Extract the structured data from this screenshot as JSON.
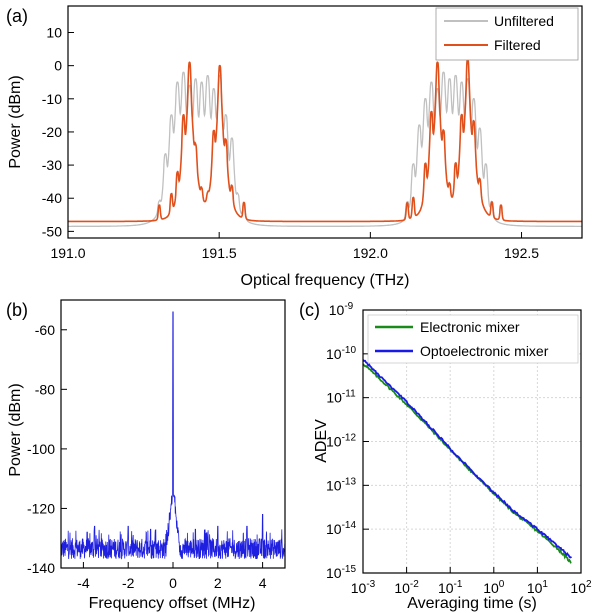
{
  "chart_data": [
    {
      "panel": "(a)",
      "type": "line",
      "xlabel": "Optical frequency (THz)",
      "ylabel": "Power (dBm)",
      "xlim": [
        191.0,
        192.7
      ],
      "ylim": [
        -52,
        18
      ],
      "xticks": [
        191.0,
        191.5,
        192.0,
        192.5
      ],
      "xtick_labels": [
        "191.0",
        "191.5",
        "192.0",
        "192.5"
      ],
      "yticks": [
        -50,
        -40,
        -30,
        -20,
        -10,
        0,
        10
      ],
      "ytick_labels": [
        "-50",
        "-40",
        "-30",
        "-20",
        "-10",
        "0",
        "10"
      ],
      "legend_position": "top-right",
      "series": [
        {
          "name": "Unfiltered",
          "color": "#c0c0c0",
          "floor": -48.5,
          "peaks": [
            {
              "x": 191.302,
              "y": -44
            },
            {
              "x": 191.322,
              "y": -27
            },
            {
              "x": 191.342,
              "y": -15
            },
            {
              "x": 191.362,
              "y": -5
            },
            {
              "x": 191.382,
              "y": -2
            },
            {
              "x": 191.402,
              "y": -6
            },
            {
              "x": 191.422,
              "y": -4
            },
            {
              "x": 191.442,
              "y": -5
            },
            {
              "x": 191.462,
              "y": -3
            },
            {
              "x": 191.482,
              "y": -7
            },
            {
              "x": 191.502,
              "y": -3
            },
            {
              "x": 191.522,
              "y": -15
            },
            {
              "x": 191.542,
              "y": -22
            },
            {
              "x": 191.562,
              "y": -41
            },
            {
              "x": 191.582,
              "y": -44
            },
            {
              "x": 192.122,
              "y": -43
            },
            {
              "x": 192.142,
              "y": -30
            },
            {
              "x": 192.162,
              "y": -18
            },
            {
              "x": 192.182,
              "y": -10
            },
            {
              "x": 192.202,
              "y": -5
            },
            {
              "x": 192.222,
              "y": -7
            },
            {
              "x": 192.242,
              "y": -2
            },
            {
              "x": 192.262,
              "y": -4
            },
            {
              "x": 192.282,
              "y": -3
            },
            {
              "x": 192.302,
              "y": -5
            },
            {
              "x": 192.322,
              "y": -4
            },
            {
              "x": 192.342,
              "y": -10
            },
            {
              "x": 192.362,
              "y": -19
            },
            {
              "x": 192.382,
              "y": -30
            },
            {
              "x": 192.402,
              "y": -43
            }
          ]
        },
        {
          "name": "Filtered",
          "color": "#e0501c",
          "floor": -47,
          "peaks": [
            {
              "x": 191.302,
              "y": -44
            },
            {
              "x": 191.342,
              "y": -40
            },
            {
              "x": 191.362,
              "y": -33
            },
            {
              "x": 191.382,
              "y": -15
            },
            {
              "x": 191.402,
              "y": 1
            },
            {
              "x": 191.422,
              "y": -25
            },
            {
              "x": 191.442,
              "y": -40
            },
            {
              "x": 191.462,
              "y": -43
            },
            {
              "x": 191.482,
              "y": -20
            },
            {
              "x": 191.502,
              "y": 0
            },
            {
              "x": 191.522,
              "y": -23
            },
            {
              "x": 191.542,
              "y": -38
            },
            {
              "x": 191.582,
              "y": -43
            },
            {
              "x": 192.122,
              "y": -43
            },
            {
              "x": 192.142,
              "y": -41
            },
            {
              "x": 192.182,
              "y": -30
            },
            {
              "x": 192.202,
              "y": -14
            },
            {
              "x": 192.222,
              "y": 1
            },
            {
              "x": 192.242,
              "y": -20
            },
            {
              "x": 192.262,
              "y": -38
            },
            {
              "x": 192.282,
              "y": -30
            },
            {
              "x": 192.302,
              "y": -15
            },
            {
              "x": 192.322,
              "y": 2
            },
            {
              "x": 192.342,
              "y": -17
            },
            {
              "x": 192.362,
              "y": -36
            },
            {
              "x": 192.402,
              "y": -43
            },
            {
              "x": 192.432,
              "y": -44
            }
          ]
        }
      ]
    },
    {
      "panel": "(b)",
      "type": "line",
      "xlabel": "Frequency offset (MHz)",
      "ylabel": "Power (dBm)",
      "xlim": [
        -5,
        5
      ],
      "ylim": [
        -140,
        -50
      ],
      "xticks": [
        -4,
        -2,
        0,
        2,
        4
      ],
      "xtick_labels": [
        "-4",
        "-2",
        "0",
        "2",
        "4"
      ],
      "yticks": [
        -140,
        -120,
        -100,
        -80,
        -60
      ],
      "ytick_labels": [
        "-140",
        "-120",
        "-100",
        "-80",
        "-60"
      ],
      "series": [
        {
          "name": "",
          "color": "#1f1fe0",
          "noise_floor": -133,
          "noise_range": [
            -137,
            -127
          ],
          "carrier": {
            "x": 0,
            "y": -54
          },
          "pedestal": {
            "half_width": 0.3,
            "level": -110
          },
          "spurs": [
            {
              "x": -2.0,
              "y": -126
            },
            {
              "x": -1.0,
              "y": -127
            },
            {
              "x": 1.0,
              "y": -127
            },
            {
              "x": 2.0,
              "y": -126
            },
            {
              "x": 4.0,
              "y": -122
            },
            {
              "x": -3.5,
              "y": -126
            },
            {
              "x": 3.3,
              "y": -126
            }
          ]
        }
      ]
    },
    {
      "panel": "(c)",
      "type": "line",
      "xscale": "log",
      "yscale": "log",
      "xlabel": "Averaging time (s)",
      "ylabel": "ADEV",
      "xlim": [
        0.001,
        100
      ],
      "ylim": [
        1e-15,
        1e-09
      ],
      "xticks": [
        0.001,
        0.01,
        0.1,
        1,
        10,
        100
      ],
      "xtick_labels": [
        {
          "base": "10",
          "exp": "-3"
        },
        {
          "base": "10",
          "exp": "-2"
        },
        {
          "base": "10",
          "exp": "-1"
        },
        {
          "base": "10",
          "exp": "0"
        },
        {
          "base": "10",
          "exp": "1"
        },
        {
          "base": "10",
          "exp": "2"
        }
      ],
      "yticks": [
        1e-15,
        1e-14,
        1e-13,
        1e-12,
        1e-11,
        1e-10,
        1e-09
      ],
      "ytick_labels": [
        {
          "base": "10",
          "exp": "-15"
        },
        {
          "base": "10",
          "exp": "-14"
        },
        {
          "base": "10",
          "exp": "-13"
        },
        {
          "base": "10",
          "exp": "-12"
        },
        {
          "base": "10",
          "exp": "-11"
        },
        {
          "base": "10",
          "exp": "-10"
        },
        {
          "base": "10",
          "exp": "-9"
        }
      ],
      "grid": true,
      "legend_position": "top-right",
      "series": [
        {
          "name": "Electronic mixer",
          "color": "#1a8a1a",
          "x": [
            0.001,
            0.003,
            0.01,
            0.03,
            0.1,
            0.3,
            1,
            3,
            10,
            30,
            60
          ],
          "y": [
            6e-11,
            2.2e-11,
            7e-12,
            2.3e-12,
            6.5e-13,
            2.1e-13,
            6.5e-14,
            2.3e-14,
            9e-15,
            3.5e-15,
            1.7e-15
          ]
        },
        {
          "name": "Optoelectronic mixer",
          "color": "#1a1ae6",
          "x": [
            0.001,
            0.003,
            0.01,
            0.03,
            0.1,
            0.3,
            1,
            3,
            10,
            30,
            60
          ],
          "y": [
            7.5e-11,
            2.5e-11,
            8e-12,
            2.5e-12,
            7e-13,
            2.2e-13,
            6.8e-14,
            2.5e-14,
            1e-14,
            4e-15,
            2.2e-15
          ]
        }
      ]
    }
  ]
}
